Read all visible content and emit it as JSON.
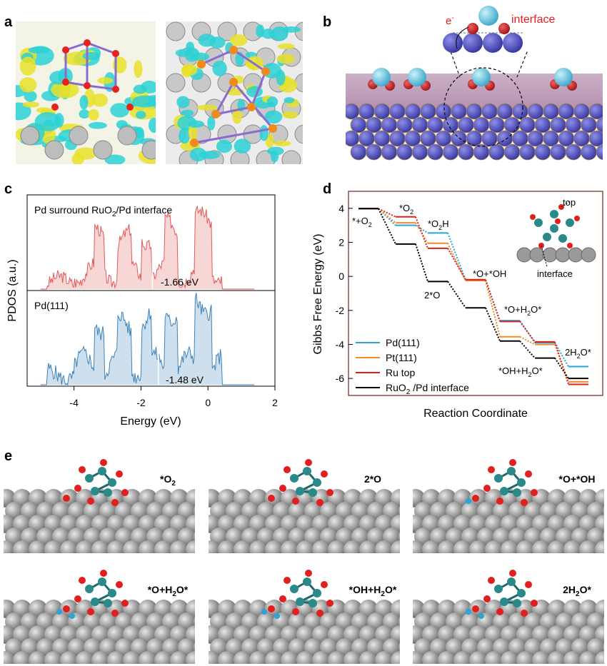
{
  "panels": {
    "a": {
      "letter": "a"
    },
    "b": {
      "letter": "b",
      "electron_label": "e",
      "electron_sup": "-",
      "interface_label": "interface"
    },
    "c": {
      "letter": "c"
    },
    "d": {
      "letter": "d"
    },
    "e": {
      "letter": "e"
    }
  },
  "pdos": {
    "top_title_pre": "Pd surround RuO",
    "top_title_sub": "2",
    "top_title_post": "/Pd interface",
    "top_center_label": "-1.66 eV",
    "bottom_title": "Pd(111)",
    "bottom_center_label": "-1.48 eV",
    "ylabel": "PDOS (a.u.)",
    "xlabel": "Energy (eV)",
    "xticks": [
      "-4",
      "-2",
      "0",
      "2"
    ],
    "top_color": "#e05a5a",
    "bottom_color": "#3d82b8"
  },
  "chart_data": {
    "type": "line",
    "xlabel": "Reaction Coordinate",
    "ylabel": "Gibbs Free Energy (eV)",
    "ylim": [
      -7,
      5
    ],
    "yticks": [
      "4",
      "2",
      "0",
      "-2",
      "-4",
      "-6"
    ],
    "steps": [
      "*+O2",
      "*O2",
      "*O2H",
      "*O+*OH",
      "*O+H2O*",
      "*OH+H2O*",
      "2H2O*"
    ],
    "series": [
      {
        "name": "Pd(111)",
        "color": "#29a3d8",
        "levels": [
          3.98,
          3.0,
          2.55,
          -0.2,
          -2.6,
          -3.9,
          -5.3
        ]
      },
      {
        "name": "Pt(111)",
        "color": "#f28c28",
        "levels": [
          3.98,
          3.15,
          1.95,
          -0.25,
          -3.55,
          -4.0,
          -6.2
        ]
      },
      {
        "name": "Ru top",
        "color": "#e0201f",
        "levels": [
          3.98,
          3.5,
          1.65,
          -0.2,
          -2.65,
          -3.85,
          -6.35
        ]
      },
      {
        "name": "RuO2 /Pd interface",
        "color": "#000000",
        "levels": [
          3.98,
          1.9,
          -0.3,
          -1.85,
          -3.8,
          -4.8,
          -6.0
        ]
      }
    ],
    "annotations": {
      "step0": "*+O",
      "step0_sub": "2",
      "step1": "*O",
      "step1_sub": "2",
      "step2": "*O",
      "step2_sub": "2",
      "step2_post": "H",
      "step3": "*O+*OH",
      "step3b": "2*O",
      "step4_pre": "*O+H",
      "step4_sub": "2",
      "step4_post": "O*",
      "step5_pre": "*OH+H",
      "step5_sub": "2",
      "step5_post": "O*",
      "step6_pre": "2H",
      "step6_sub": "2",
      "step6_post": "O*",
      "inset_top": "top",
      "inset_interface": "interface"
    },
    "legend": [
      {
        "label_pre": "Pd(111)",
        "label_sub": "",
        "label_post": ""
      },
      {
        "label_pre": "Pt(111)",
        "label_sub": "",
        "label_post": ""
      },
      {
        "label_pre": "Ru top",
        "label_sub": "",
        "label_post": ""
      },
      {
        "label_pre": "RuO",
        "label_sub": "2",
        "label_post": " /Pd interface"
      }
    ]
  },
  "structures": [
    {
      "pre": "*O",
      "sub": "2",
      "post": ""
    },
    {
      "pre": "2*O",
      "sub": "",
      "post": ""
    },
    {
      "pre": "*O+*OH",
      "sub": "",
      "post": ""
    },
    {
      "pre": "*O+H",
      "sub": "2",
      "post": "O*"
    },
    {
      "pre": "*OH+H",
      "sub": "2",
      "post": "O*"
    },
    {
      "pre": "2H",
      "sub": "2",
      "post": "O*"
    }
  ]
}
